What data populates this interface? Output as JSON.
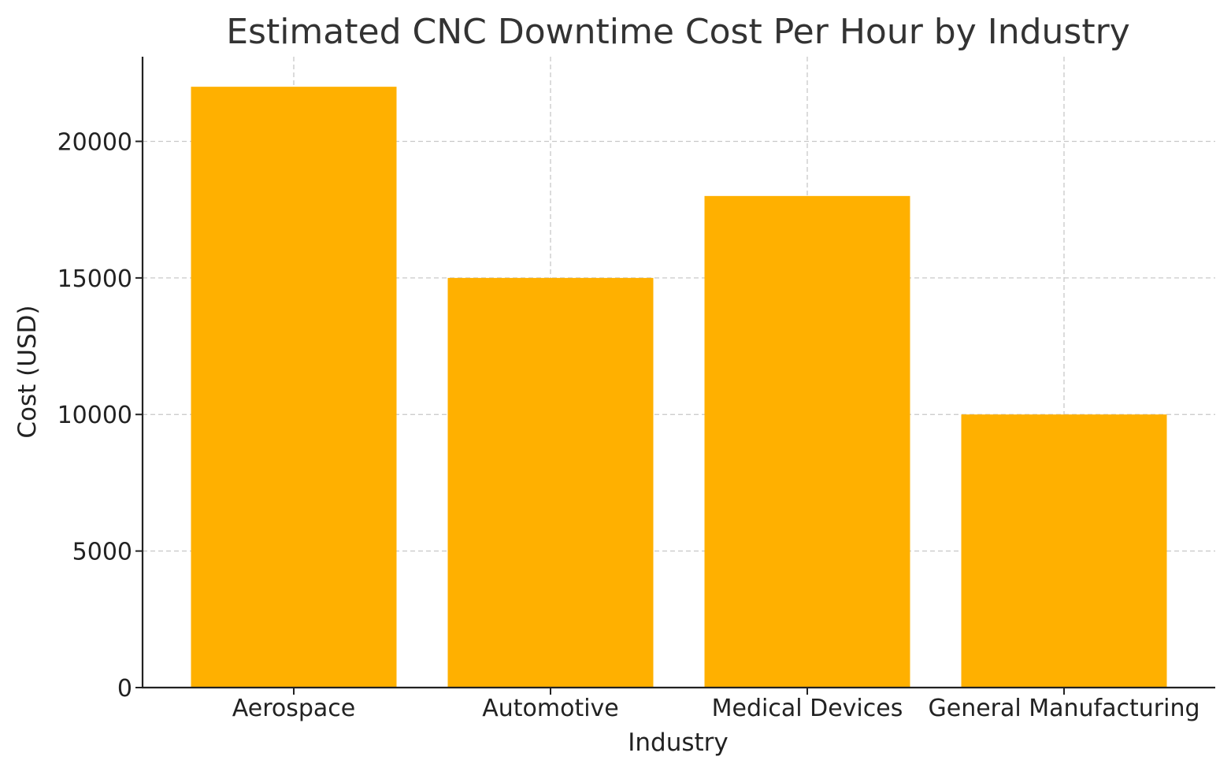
{
  "chart_data": {
    "type": "bar",
    "title": "Estimated CNC Downtime Cost Per Hour by Industry",
    "xlabel": "Industry",
    "ylabel": "Cost (USD)",
    "categories": [
      "Aerospace",
      "Automotive",
      "Medical Devices",
      "General Manufacturing"
    ],
    "values": [
      22000,
      15000,
      18000,
      10000
    ],
    "ylim": [
      0,
      23100
    ],
    "yticks": [
      0,
      5000,
      10000,
      15000,
      20000
    ],
    "grid": true,
    "bar_color": "#ffb000"
  }
}
